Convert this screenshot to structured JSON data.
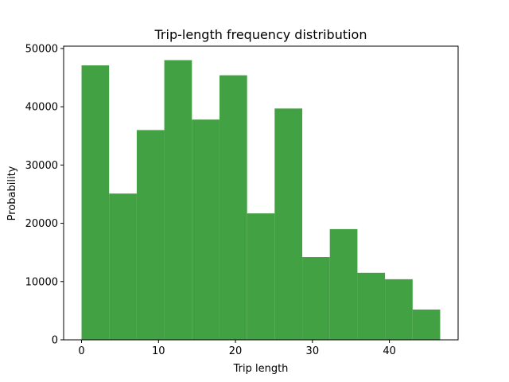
{
  "chart_data": {
    "type": "histogram",
    "title": "Trip-length frequency distribution",
    "xlabel": "Trip length",
    "ylabel": "Probability",
    "bins": [
      0,
      3.58,
      7.17,
      10.75,
      14.34,
      17.92,
      21.51,
      25.09,
      28.68,
      32.26,
      35.85,
      39.43,
      43.02,
      46.6
    ],
    "counts": [
      47100,
      25100,
      36000,
      48000,
      37800,
      45400,
      21700,
      39700,
      14200,
      19000,
      11500,
      10400,
      5200
    ],
    "color": "#42a142",
    "xlim": [
      -2.33,
      48.93
    ],
    "xticks": [
      0,
      10,
      20,
      30,
      40
    ],
    "ylim": [
      0,
      50400
    ],
    "yticks": [
      0,
      10000,
      20000,
      30000,
      40000,
      50000
    ]
  }
}
